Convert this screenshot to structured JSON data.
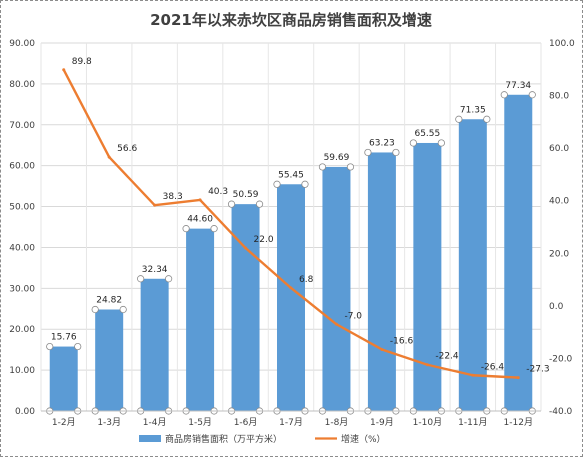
{
  "chart_data": {
    "type": "bar",
    "title": "2021年以来赤坎区商品房销售面积及增速",
    "categories": [
      "1-2月",
      "1-3月",
      "1-4月",
      "1-5月",
      "1-6月",
      "1-7月",
      "1-8月",
      "1-9月",
      "1-10月",
      "1-11月",
      "1-12月"
    ],
    "series": [
      {
        "name": "商品房销售面积（万平方米）",
        "type": "bar",
        "axis": "left",
        "color": "#5b9bd5",
        "values": [
          15.76,
          24.82,
          32.34,
          44.6,
          50.59,
          55.45,
          59.69,
          63.23,
          65.55,
          71.35,
          77.34
        ],
        "labels": [
          "15.76",
          "24.82",
          "32.34",
          "44.60",
          "50.59",
          "55.45",
          "59.69",
          "63.23",
          "65.55",
          "71.35",
          "77.34"
        ]
      },
      {
        "name": "增速（%）",
        "type": "line",
        "axis": "right",
        "color": "#ed7d31",
        "values": [
          89.8,
          56.6,
          38.3,
          40.3,
          22.0,
          6.8,
          -7.0,
          -16.6,
          -22.4,
          -26.4,
          -27.3
        ],
        "labels": [
          "89.8",
          "56.6",
          "38.3",
          "40.3",
          "22.0",
          "6.8",
          "-7.0",
          "-16.6",
          "-22.4",
          "-26.4",
          "-27.3"
        ]
      }
    ],
    "y_left": {
      "ylim": [
        0,
        90
      ],
      "ticks": [
        "0.00",
        "10.00",
        "20.00",
        "30.00",
        "40.00",
        "50.00",
        "60.00",
        "70.00",
        "80.00",
        "90.00"
      ]
    },
    "y_right": {
      "ylim": [
        -40,
        100
      ],
      "ticks": [
        "-40.0",
        "-20.0",
        "0.0",
        "20.0",
        "40.0",
        "60.0",
        "80.0",
        "100.0"
      ]
    },
    "grid": true,
    "legend_position": "bottom"
  }
}
